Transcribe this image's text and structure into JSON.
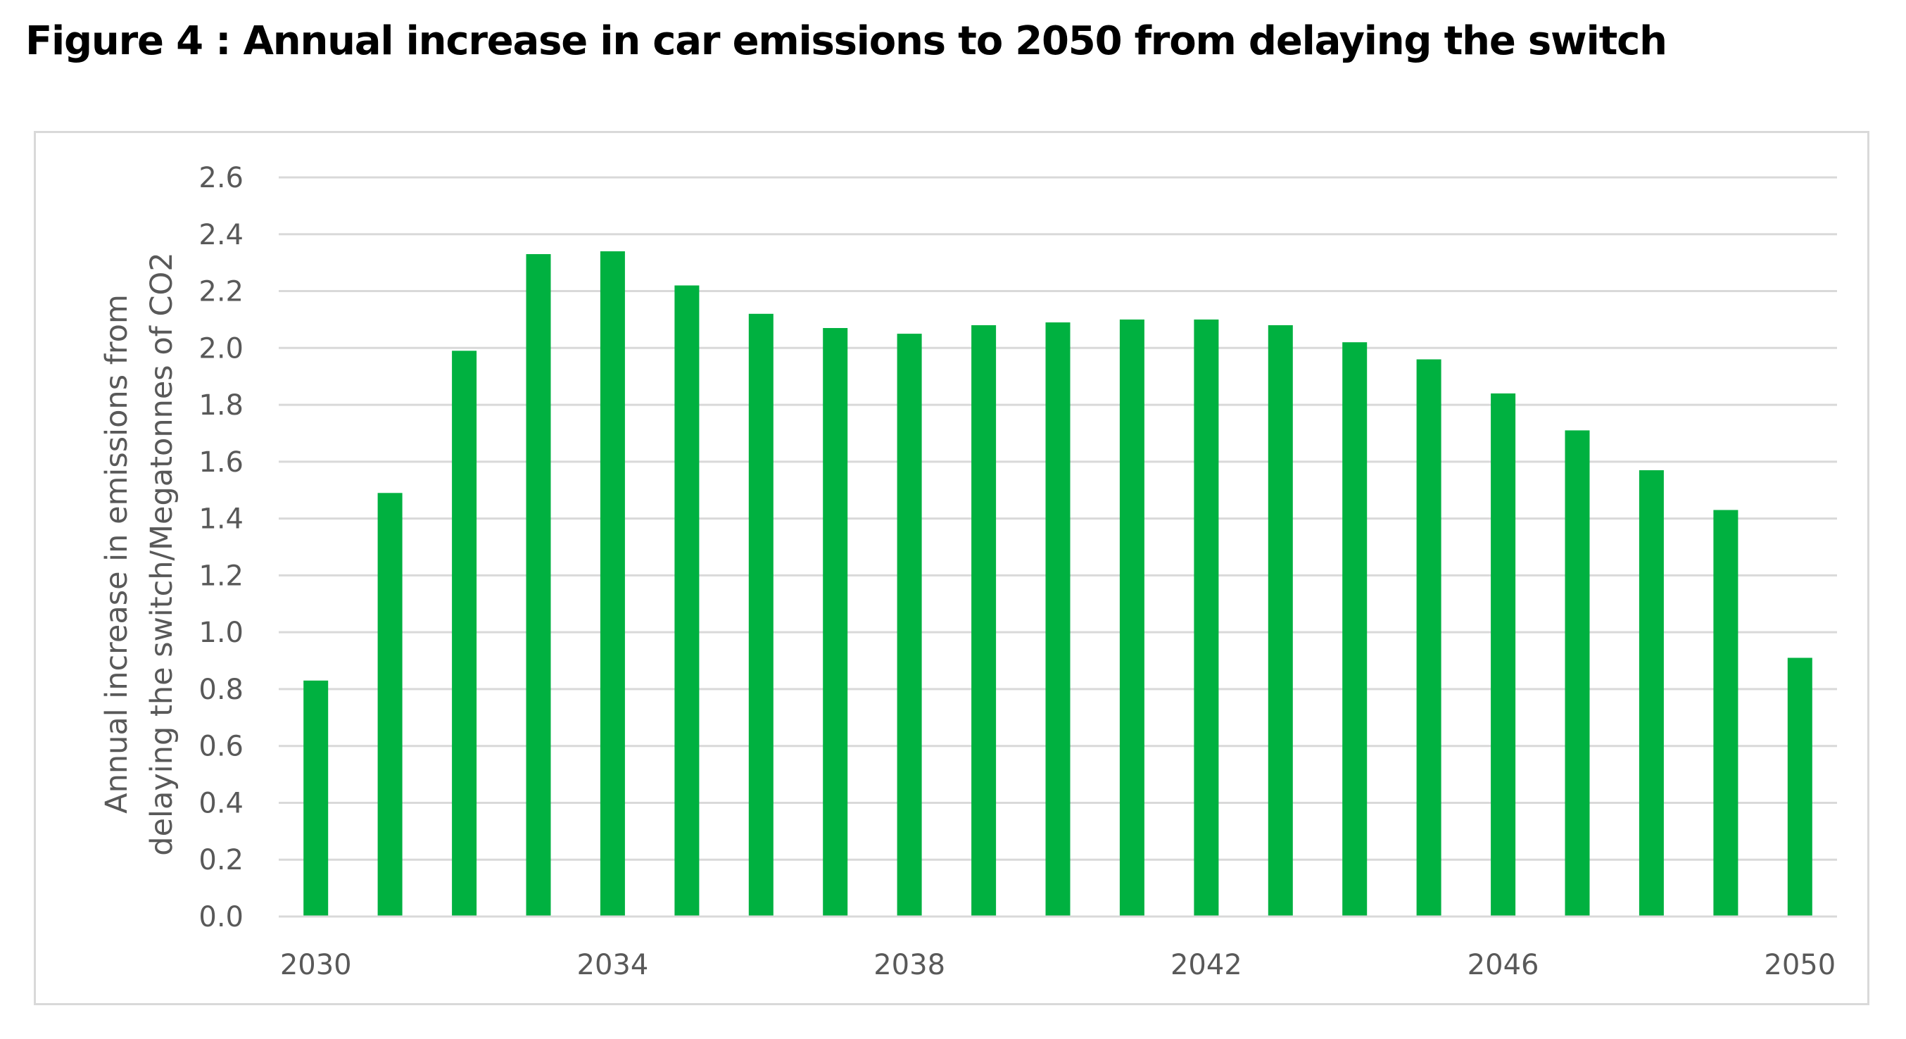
{
  "page": {
    "title": "Figure 4 : Annual increase in car emissions to 2050 from delaying the switch"
  },
  "chart_data": {
    "type": "bar",
    "title": "Figure 4 : Annual increase in car emissions to 2050 from delaying the switch",
    "xlabel": "",
    "ylabel": "Annual increase in emissions from delaying the switch/Megatonnes of CO2",
    "ylabel_lines": [
      "Annual increase in emissions from",
      "delaying the switch/Megatonnes of CO2"
    ],
    "categories": [
      "2030",
      "2031",
      "2032",
      "2033",
      "2034",
      "2035",
      "2036",
      "2037",
      "2038",
      "2039",
      "2040",
      "2041",
      "2042",
      "2043",
      "2044",
      "2045",
      "2046",
      "2047",
      "2048",
      "2049",
      "2050"
    ],
    "values": [
      0.83,
      1.49,
      1.99,
      2.33,
      2.34,
      2.22,
      2.12,
      2.07,
      2.05,
      2.08,
      2.09,
      2.1,
      2.1,
      2.08,
      2.02,
      1.96,
      1.84,
      1.71,
      1.57,
      1.43,
      0.91
    ],
    "x_tick_labels": [
      "2030",
      "2034",
      "2038",
      "2042",
      "2046",
      "2050"
    ],
    "y_tick_labels": [
      "0.0",
      "0.2",
      "0.4",
      "0.6",
      "0.8",
      "1.0",
      "1.2",
      "1.4",
      "1.6",
      "1.8",
      "2.0",
      "2.2",
      "2.4",
      "2.6"
    ],
    "ylim": [
      0,
      2.6
    ],
    "y_step": 0.2,
    "grid": true,
    "legend": "none",
    "colors": {
      "bar": "#00b140",
      "grid": "#d9d9d9",
      "axis": "#d9d9d9",
      "text": "#595959",
      "frame": "#d9d9d9"
    }
  }
}
